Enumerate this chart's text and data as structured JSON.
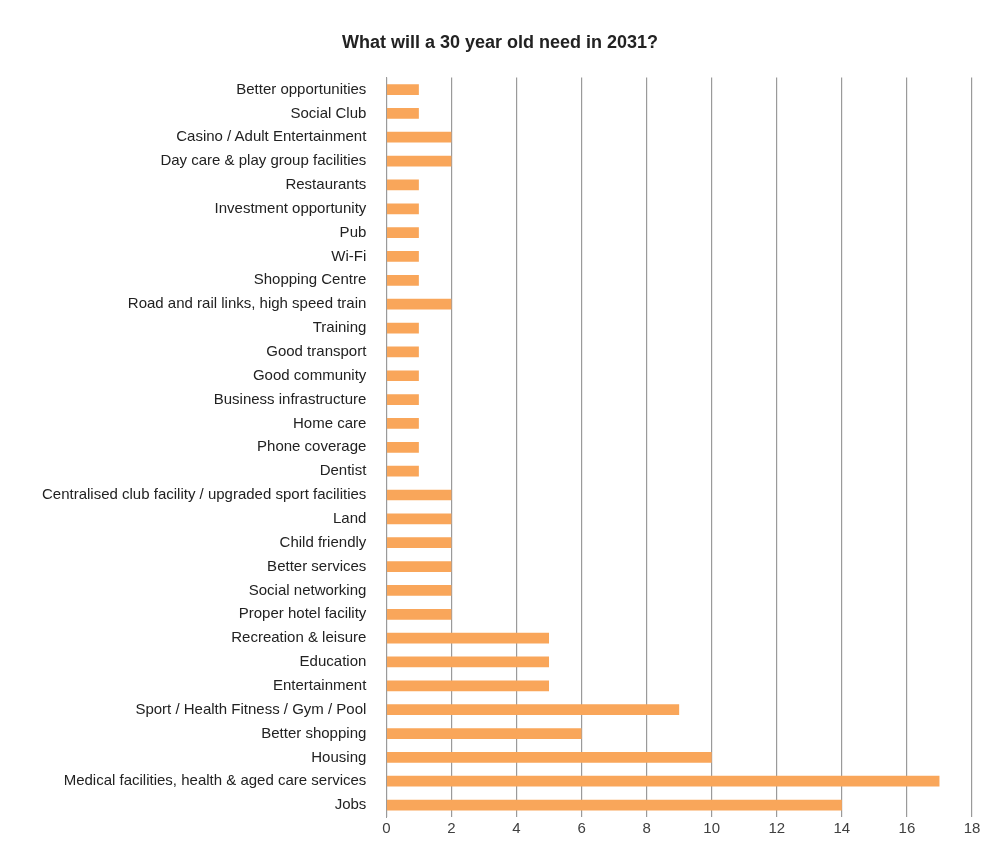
{
  "chart_data": {
    "type": "bar",
    "orientation": "horizontal",
    "title": "What will a 30 year old need in 2031?",
    "categories": [
      "Better opportunities",
      "Social Club",
      "Casino / Adult Entertainment",
      "Day care & play group facilities",
      "Restaurants",
      "Investment opportunity",
      "Pub",
      "Wi-Fi",
      "Shopping Centre",
      "Road and rail links, high speed train",
      "Training",
      "Good transport",
      "Good community",
      "Business infrastructure",
      "Home care",
      "Phone coverage",
      "Dentist",
      "Centralised club facility / upgraded sport facilities",
      "Land",
      "Child friendly",
      "Better services",
      "Social networking",
      "Proper hotel facility",
      "Recreation & leisure",
      "Education",
      "Entertainment",
      "Sport / Health Fitness / Gym / Pool",
      "Better shopping",
      "Housing",
      "Medical facilities, health & aged care services",
      "Jobs"
    ],
    "values": [
      1,
      1,
      2,
      2,
      1,
      1,
      1,
      1,
      1,
      2,
      1,
      1,
      1,
      1,
      1,
      1,
      1,
      2,
      2,
      2,
      2,
      2,
      2,
      5,
      5,
      5,
      9,
      6,
      10,
      17,
      14
    ],
    "color": "#f9a65a",
    "xlim": [
      0,
      18
    ],
    "xticks": [
      0,
      2,
      4,
      6,
      8,
      10,
      12,
      14,
      16,
      18
    ],
    "grid": "x",
    "legend": false
  }
}
